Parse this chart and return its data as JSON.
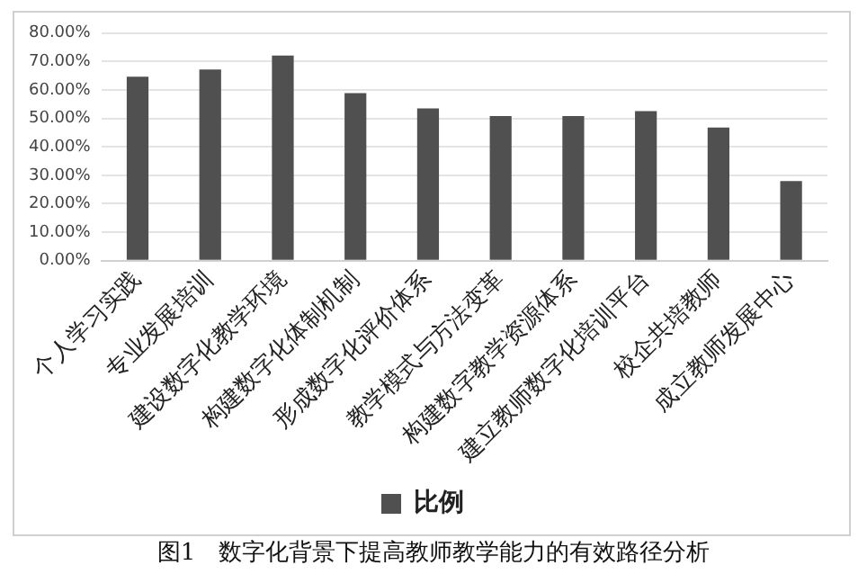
{
  "chart_data": {
    "type": "bar",
    "categories": [
      "个人学习实践",
      "专业发展培训",
      "建设数字化教学环境",
      "构建数字化体制机制",
      "形成数字化评价体系",
      "教学模式与方法变革",
      "构建数字教学资源体系",
      "建立教师数字化培训平台",
      "校企共培教师",
      "成立教师发展中心"
    ],
    "series": [
      {
        "name": "比例",
        "color": "#505050",
        "values": [
          64.7,
          67.2,
          72.1,
          58.9,
          53.5,
          50.8,
          50.8,
          52.6,
          46.8,
          28.0
        ]
      }
    ],
    "ylim": [
      0,
      80
    ],
    "yticks": [
      {
        "value": 0,
        "label": "0.00%"
      },
      {
        "value": 10,
        "label": "10.00%"
      },
      {
        "value": 20,
        "label": "20.00%"
      },
      {
        "value": 30,
        "label": "30.00%"
      },
      {
        "value": 40,
        "label": "40.00%"
      },
      {
        "value": 50,
        "label": "50.00%"
      },
      {
        "value": 60,
        "label": "60.00%"
      },
      {
        "value": 70,
        "label": "70.00%"
      },
      {
        "value": 80,
        "label": "80.00%"
      }
    ],
    "grid": "y",
    "legend": "bottom",
    "annotations": [
      "图1　数字化背景下提高教师教学能力的有效路径分析"
    ]
  }
}
